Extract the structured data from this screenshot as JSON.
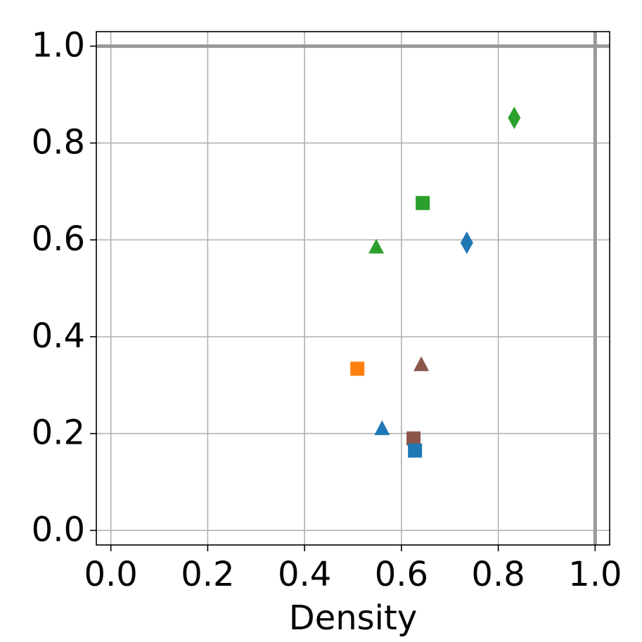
{
  "chart_data": {
    "type": "scatter",
    "xlabel": "Density",
    "xlim": [
      -0.03,
      1.03
    ],
    "ylim": [
      -0.03,
      1.03
    ],
    "xticks": [
      {
        "value": 0,
        "label": "0.0"
      },
      0.2,
      0.4,
      0.6,
      0.8,
      {
        "value": 1,
        "label": "1.0"
      }
    ],
    "yticks": [
      {
        "value": 0,
        "label": "0.0"
      },
      0.2,
      0.4,
      0.6,
      0.8,
      {
        "value": 1,
        "label": "1.0"
      }
    ],
    "grid": true,
    "hlines": [
      1
    ],
    "vlines": [
      1
    ],
    "series": [
      {
        "color": "#2ca02c",
        "marker": "diamond",
        "x": [
          0.833
        ],
        "y": [
          0.852
        ]
      },
      {
        "color": "#2ca02c",
        "marker": "square",
        "x": [
          0.644
        ],
        "y": [
          0.676
        ]
      },
      {
        "color": "#2ca02c",
        "marker": "triangle",
        "x": [
          0.548
        ],
        "y": [
          0.585
        ]
      },
      {
        "color": "#1f77b4",
        "marker": "diamond",
        "x": [
          0.735
        ],
        "y": [
          0.594
        ]
      },
      {
        "color": "#ff7f0e",
        "marker": "square",
        "x": [
          0.509
        ],
        "y": [
          0.334
        ]
      },
      {
        "color": "#8c564b",
        "marker": "triangle",
        "x": [
          0.641
        ],
        "y": [
          0.342
        ]
      },
      {
        "color": "#1f77b4",
        "marker": "triangle",
        "x": [
          0.56
        ],
        "y": [
          0.21
        ]
      },
      {
        "color": "#8c564b",
        "marker": "square",
        "x": [
          0.625
        ],
        "y": [
          0.19
        ]
      },
      {
        "color": "#1f77b4",
        "marker": "square",
        "x": [
          0.628
        ],
        "y": [
          0.165
        ]
      }
    ]
  }
}
